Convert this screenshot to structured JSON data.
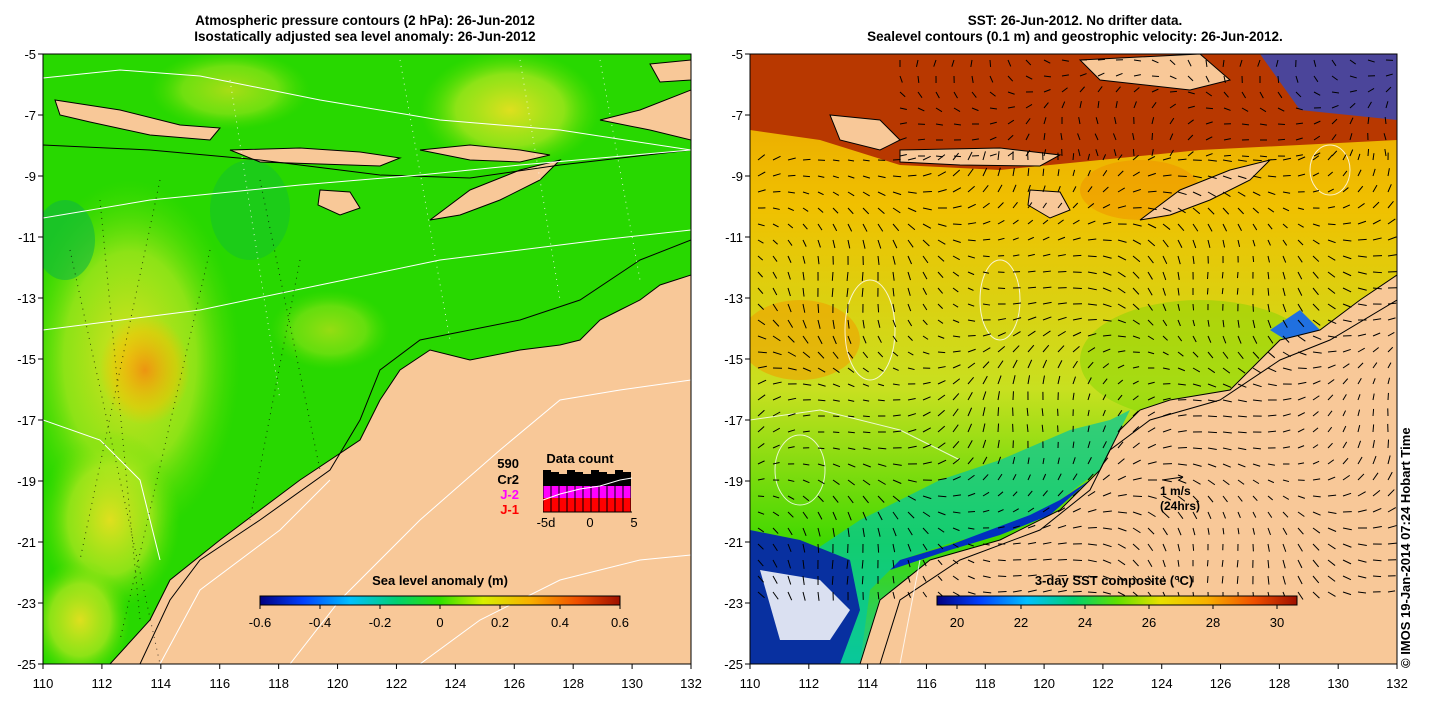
{
  "left_panel": {
    "title_line1": "Atmospheric pressure contours (2 hPa): 26-Jun-2012",
    "title_line2": "Isostatically adjusted sea level anomaly: 26-Jun-2012",
    "lat_ticks": [
      "-5",
      "-7",
      "-9",
      "-11",
      "-13",
      "-15",
      "-17",
      "-19",
      "-21",
      "-23",
      "-25"
    ],
    "lon_ticks": [
      "110",
      "112",
      "114",
      "116",
      "118",
      "120",
      "122",
      "124",
      "126",
      "128",
      "130",
      "132"
    ],
    "colorbar": {
      "title": "Sea level anomaly (m)",
      "ticks": [
        "-0.6",
        "-0.4",
        "-0.2",
        "0",
        "0.2",
        "0.4",
        "0.6"
      ]
    },
    "data_count": {
      "title": "Data count",
      "count": "590",
      "labels": [
        {
          "text": "Cr2",
          "color": "#000000"
        },
        {
          "text": "J-2",
          "color": "#ff00ff"
        },
        {
          "text": "J-1",
          "color": "#ff0000"
        }
      ],
      "xticks": [
        "-5d",
        "0",
        "5"
      ]
    }
  },
  "right_panel": {
    "title_line1": "SST: 26-Jun-2012. No drifter data.",
    "title_line2": "Sealevel contours (0.1 m) and geostrophic velocity: 26-Jun-2012.",
    "lat_ticks": [
      "-5",
      "-7",
      "-9",
      "-11",
      "-13",
      "-15",
      "-17",
      "-19",
      "-21",
      "-23",
      "-25"
    ],
    "lon_ticks": [
      "110",
      "112",
      "114",
      "116",
      "118",
      "120",
      "122",
      "124",
      "126",
      "128",
      "130",
      "132"
    ],
    "colorbar": {
      "title": "3-day SST composite (°C)",
      "ticks": [
        "20",
        "22",
        "24",
        "26",
        "28",
        "30"
      ]
    },
    "velocity_legend": {
      "line1": "1 m/s",
      "line2": "(24hrs)"
    }
  },
  "credit": "© IMOS 19-Jan-2014 07:24 Hobart Time",
  "colors": {
    "land": "#f8c898",
    "sla_green": "#28d800",
    "sla_yellow": "#c8e820",
    "sst_warm": "#f0c000",
    "sst_hot": "#c03000"
  }
}
